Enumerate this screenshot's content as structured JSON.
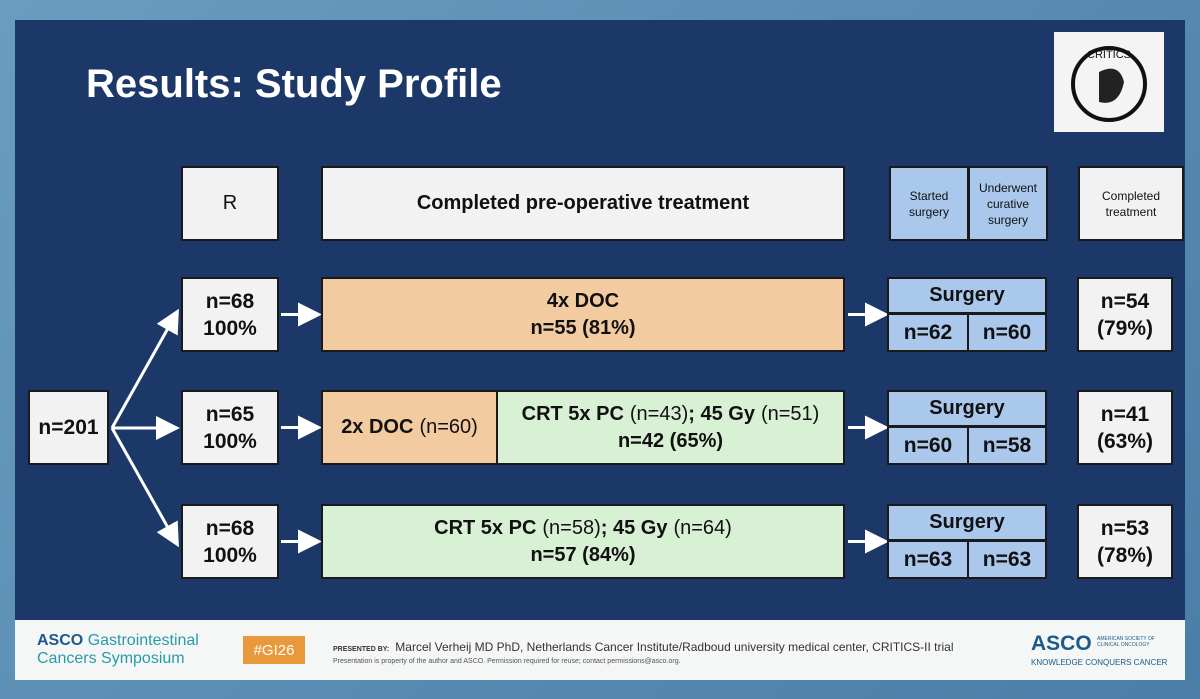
{
  "title": "Results: Study Profile",
  "logo": "CRITICS",
  "headers": {
    "randomization": "R",
    "preop": "Completed pre-operative treatment",
    "started": "Started surgery",
    "underwent": "Underwent curative surgery",
    "completed": "Completed treatment"
  },
  "total": "n=201",
  "arms": [
    {
      "randomized": [
        "n=68",
        "100%"
      ],
      "treatment": [
        {
          "color": "#f3cba1",
          "lines": [
            [
              {
                "text": "4x DOC",
                "bold": true
              }
            ],
            [
              {
                "text": "n=55 (81%)",
                "bold": true
              }
            ]
          ]
        }
      ],
      "surgery": "Surgery",
      "started": "n=62",
      "underwent": "n=60",
      "completed": [
        "n=54",
        "(79%)"
      ]
    },
    {
      "randomized": [
        "n=65",
        "100%"
      ],
      "treatment": [
        {
          "color": "#f3cba1",
          "lines": [
            [
              {
                "text": "2x DOC",
                "bold": true
              },
              {
                "text": "(n=60)",
                "bold": false
              }
            ]
          ]
        },
        {
          "color": "#d8f0d4",
          "lines": [
            [
              {
                "text": "CRT 5x PC",
                "bold": true
              },
              {
                "text": "(n=43)",
                "bold": false
              },
              {
                "text": "; 45 Gy",
                "bold": true
              },
              {
                "text": "(n=51)",
                "bold": false
              }
            ],
            [
              {
                "text": "n=42 (65%)",
                "bold": true
              }
            ]
          ]
        }
      ],
      "surgery": "Surgery",
      "started": "n=60",
      "underwent": "n=58",
      "completed": [
        "n=41",
        "(63%)"
      ]
    },
    {
      "randomized": [
        "n=68",
        "100%"
      ],
      "treatment": [
        {
          "color": "#d8f0d4",
          "lines": [
            [
              {
                "text": "CRT 5x PC",
                "bold": true
              },
              {
                "text": "(n=58)",
                "bold": false
              },
              {
                "text": "; 45 Gy",
                "bold": true
              },
              {
                "text": "(n=64)",
                "bold": false
              }
            ],
            [
              {
                "text": "n=57 (84%)",
                "bold": true
              }
            ]
          ]
        }
      ],
      "surgery": "Surgery",
      "started": "n=63",
      "underwent": "n=63",
      "completed": [
        "n=53",
        "(78%)"
      ]
    }
  ],
  "footer": {
    "asco": "ASCO",
    "meeting_line1": "Gastrointestinal",
    "meeting_line2": "Cancers Symposium",
    "hashtag": "#GI26",
    "presented_by": "PRESENTED BY:",
    "presenter": "Marcel Verheij MD PhD, Netherlands Cancer Institute/Radboud university medical center, CRITICS-II trial",
    "notice": "Presentation is property of the author and ASCO. Permission required for reuse; contact permissions@asco.org.",
    "society_logo": "ASCO",
    "society_name": "AMERICAN SOCIETY OF CLINICAL ONCOLOGY",
    "tagline": "KNOWLEDGE CONQUERS CANCER"
  }
}
